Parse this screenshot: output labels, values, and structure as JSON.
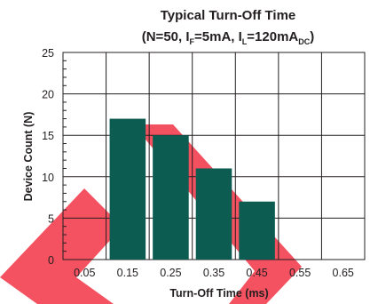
{
  "chart_data": {
    "type": "bar",
    "title": "Typical Turn-Off Time",
    "subtitle": {
      "prefix": "(N=50, I",
      "sub1": "F",
      "mid": "=5mA, I",
      "sub2": "L",
      "mid2": "=120mA",
      "sub3": "DC",
      "suffix": ")"
    },
    "xlabel": "Turn-Off Time (ms)",
    "ylabel": "Device Count (N)",
    "categories": [
      "0.05",
      "0.15",
      "0.25",
      "0.35",
      "0.45",
      "0.55",
      "0.65"
    ],
    "values": [
      0,
      17,
      15,
      11,
      7,
      0,
      0
    ],
    "yticks": [
      "0",
      "5",
      "10",
      "15",
      "20",
      "25"
    ],
    "ylim": [
      0,
      25
    ],
    "grid": true,
    "bar_color": "#0d5c52",
    "watermark_color": "#f23a4a"
  }
}
